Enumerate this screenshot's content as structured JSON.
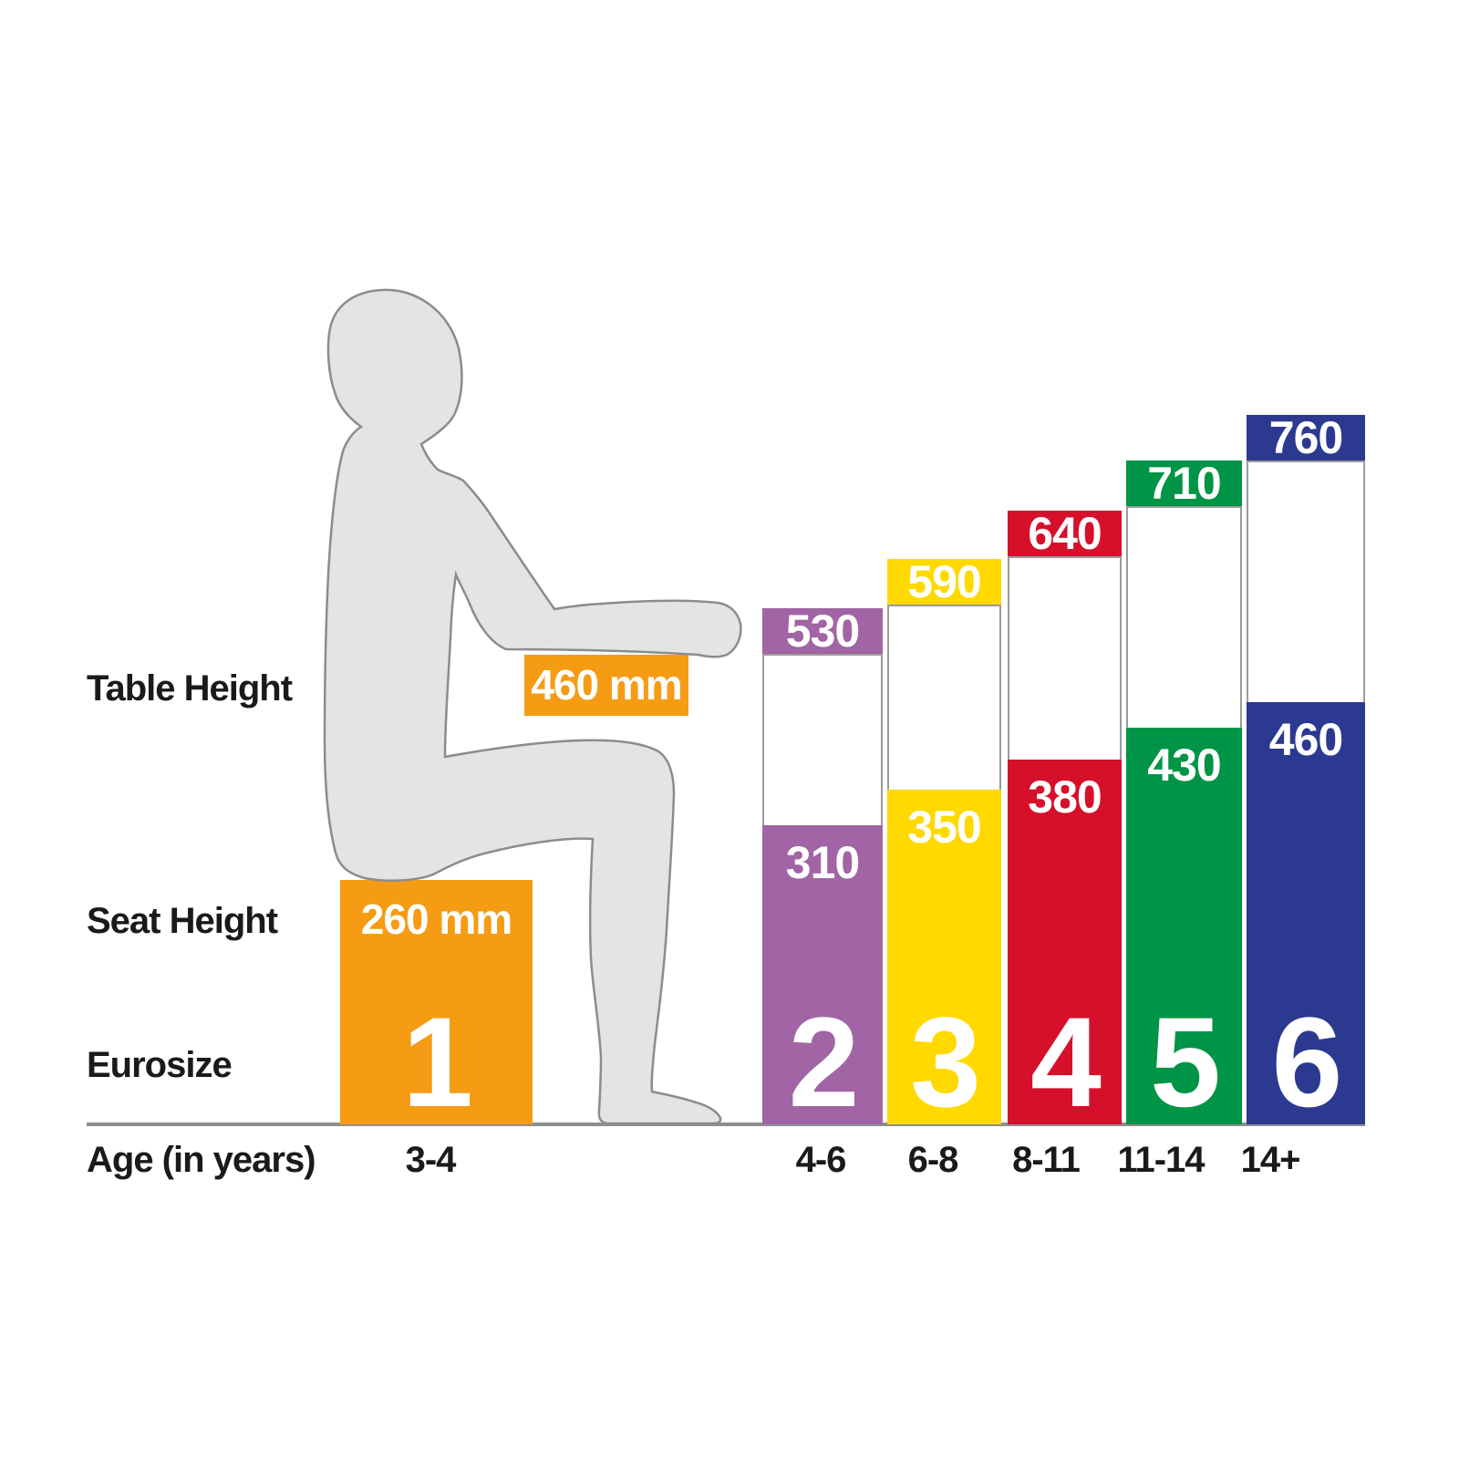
{
  "labels": {
    "table_height": "Table Height",
    "seat_height": "Seat Height",
    "eurosize": "Eurosize",
    "age": "Age (in years)"
  },
  "size1": {
    "table_value": "460 mm",
    "seat_value": "260 mm",
    "eurosize": "1",
    "age": "3-4"
  },
  "chart_data": {
    "type": "bar",
    "unit": "mm",
    "categories": [
      "1",
      "2",
      "3",
      "4",
      "5",
      "6"
    ],
    "age_groups": [
      "3-4",
      "4-6",
      "6-8",
      "8-11",
      "11-14",
      "14+"
    ],
    "series": [
      {
        "name": "Table Height",
        "values": [
          460,
          530,
          590,
          640,
          710,
          760
        ]
      },
      {
        "name": "Seat Height",
        "values": [
          260,
          310,
          350,
          380,
          430,
          460
        ]
      }
    ],
    "bar_colors": [
      "#F59C14",
      "#A164A4",
      "#FFD900",
      "#D6102B",
      "#009446",
      "#2B3990"
    ],
    "ylim": [
      0,
      800
    ],
    "grid": false,
    "value_labels": true,
    "columns": [
      {
        "eurosize": "1",
        "age": "3-4",
        "table": "460",
        "seat": "260",
        "color": "#F59C14"
      },
      {
        "eurosize": "2",
        "age": "4-6",
        "table": "530",
        "seat": "310",
        "color": "#A164A4"
      },
      {
        "eurosize": "3",
        "age": "6-8",
        "table": "590",
        "seat": "350",
        "color": "#FFD900"
      },
      {
        "eurosize": "4",
        "age": "8-11",
        "table": "640",
        "seat": "380",
        "color": "#D6102B"
      },
      {
        "eurosize": "5",
        "age": "11-14",
        "table": "710",
        "seat": "430",
        "color": "#009446"
      },
      {
        "eurosize": "6",
        "age": "14+",
        "table": "760",
        "seat": "460",
        "color": "#2B3990"
      }
    ]
  },
  "colors": {
    "orange": "#F59C14",
    "text_dark": "#1A1A1A",
    "baseline": "#8E8E8E",
    "figure_fill": "#E3E4E6",
    "figure_outline": "#8C8C8C",
    "label_text": "#FFFFFF"
  }
}
